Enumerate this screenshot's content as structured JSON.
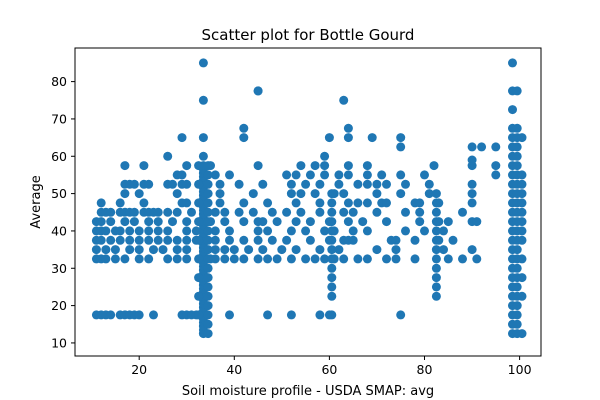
{
  "chart_data": {
    "type": "scatter",
    "title": "Scatter plot for Bottle Gourd",
    "xlabel": "Soil moisture profile - USDA SMAP: avg",
    "ylabel": "Average",
    "xlim": [
      6.5,
      104.5
    ],
    "ylim": [
      6.5,
      89
    ],
    "xticks": [
      20,
      40,
      60,
      80,
      100
    ],
    "yticks": [
      10,
      20,
      30,
      40,
      50,
      60,
      70,
      80
    ],
    "grid": false,
    "legend": "none",
    "marker_color": "#1f77b4",
    "points": [
      [
        11,
        17.5
      ],
      [
        12,
        17.5
      ],
      [
        13,
        17.5
      ],
      [
        14,
        17.5
      ],
      [
        16,
        17.5
      ],
      [
        17,
        17.5
      ],
      [
        18,
        17.5
      ],
      [
        19,
        17.5
      ],
      [
        20,
        17.5
      ],
      [
        23,
        17.5
      ],
      [
        29,
        17.5
      ],
      [
        30,
        17.5
      ],
      [
        31,
        17.5
      ],
      [
        32,
        17.5
      ],
      [
        39,
        17.5
      ],
      [
        47,
        17.5
      ],
      [
        52,
        17.5
      ],
      [
        58,
        17.5
      ],
      [
        60,
        17.5
      ],
      [
        75,
        17.5
      ],
      [
        11,
        32.5
      ],
      [
        12,
        32.5
      ],
      [
        13,
        32.5
      ],
      [
        15,
        32.5
      ],
      [
        17,
        32.5
      ],
      [
        20,
        32.5
      ],
      [
        22,
        32.5
      ],
      [
        26,
        32.5
      ],
      [
        28,
        32.5
      ],
      [
        30,
        32.5
      ],
      [
        35,
        32.5
      ],
      [
        36,
        32.5
      ],
      [
        38,
        32.5
      ],
      [
        40,
        32.5
      ],
      [
        42,
        32.5
      ],
      [
        45,
        32.5
      ],
      [
        47,
        32.5
      ],
      [
        49,
        32.5
      ],
      [
        52,
        32.5
      ],
      [
        55,
        32.5
      ],
      [
        57,
        32.5
      ],
      [
        59,
        32.5
      ],
      [
        61,
        32.5
      ],
      [
        63,
        32.5
      ],
      [
        66,
        32.5
      ],
      [
        68,
        32.5
      ],
      [
        72,
        32.5
      ],
      [
        74,
        32.5
      ],
      [
        78,
        32.5
      ],
      [
        85,
        32.5
      ],
      [
        88,
        32.5
      ],
      [
        91,
        32.5
      ],
      [
        11,
        35
      ],
      [
        13,
        35
      ],
      [
        15,
        35
      ],
      [
        18,
        35
      ],
      [
        20,
        35
      ],
      [
        23,
        35
      ],
      [
        25,
        35
      ],
      [
        28,
        35
      ],
      [
        30,
        35
      ],
      [
        36,
        35
      ],
      [
        38,
        35
      ],
      [
        40,
        35
      ],
      [
        43,
        35
      ],
      [
        46,
        35
      ],
      [
        50,
        35
      ],
      [
        53,
        35
      ],
      [
        58,
        35
      ],
      [
        62,
        35
      ],
      [
        70,
        35
      ],
      [
        74,
        35
      ],
      [
        84,
        35
      ],
      [
        90,
        35
      ],
      [
        11,
        37.5
      ],
      [
        12,
        37.5
      ],
      [
        14,
        37.5
      ],
      [
        16,
        37.5
      ],
      [
        18,
        37.5
      ],
      [
        20,
        37.5
      ],
      [
        22,
        37.5
      ],
      [
        24,
        37.5
      ],
      [
        26,
        37.5
      ],
      [
        28,
        37.5
      ],
      [
        30,
        37.5
      ],
      [
        32,
        37.5
      ],
      [
        36,
        37.5
      ],
      [
        39,
        37.5
      ],
      [
        42,
        37.5
      ],
      [
        45,
        37.5
      ],
      [
        48,
        37.5
      ],
      [
        51,
        37.5
      ],
      [
        56,
        37.5
      ],
      [
        60,
        37.5
      ],
      [
        63,
        37.5
      ],
      [
        64,
        37.5
      ],
      [
        65,
        37.5
      ],
      [
        73,
        37.5
      ],
      [
        74,
        37.5
      ],
      [
        78,
        37.5
      ],
      [
        83,
        37.5
      ],
      [
        86,
        37.5
      ],
      [
        11,
        40
      ],
      [
        12,
        40
      ],
      [
        13,
        40
      ],
      [
        15,
        40
      ],
      [
        16,
        40
      ],
      [
        18,
        40
      ],
      [
        20,
        40
      ],
      [
        22,
        40
      ],
      [
        24,
        40
      ],
      [
        26,
        40
      ],
      [
        30,
        40
      ],
      [
        32,
        40
      ],
      [
        36,
        40
      ],
      [
        39,
        40
      ],
      [
        45,
        40
      ],
      [
        47,
        40
      ],
      [
        52,
        40
      ],
      [
        55,
        40
      ],
      [
        59,
        40
      ],
      [
        61,
        40
      ],
      [
        65,
        40
      ],
      [
        68,
        40
      ],
      [
        76,
        40
      ],
      [
        80,
        40
      ],
      [
        84,
        40
      ],
      [
        11,
        42.5
      ],
      [
        12,
        42.5
      ],
      [
        14,
        42.5
      ],
      [
        17,
        42.5
      ],
      [
        19,
        42.5
      ],
      [
        22,
        42.5
      ],
      [
        24,
        42.5
      ],
      [
        27,
        42.5
      ],
      [
        30,
        42.5
      ],
      [
        35,
        42.5
      ],
      [
        38,
        42.5
      ],
      [
        42,
        42.5
      ],
      [
        45,
        42.5
      ],
      [
        46,
        42.5
      ],
      [
        49,
        42.5
      ],
      [
        53,
        42.5
      ],
      [
        56,
        42.5
      ],
      [
        60,
        42.5
      ],
      [
        64,
        42.5
      ],
      [
        67,
        42.5
      ],
      [
        72,
        42.5
      ],
      [
        79,
        42.5
      ],
      [
        83,
        42.5
      ],
      [
        85,
        42.5
      ],
      [
        90,
        42.5
      ],
      [
        91,
        42.5
      ],
      [
        12,
        45
      ],
      [
        13,
        45
      ],
      [
        14,
        45
      ],
      [
        16,
        45
      ],
      [
        17,
        45
      ],
      [
        18,
        45
      ],
      [
        19,
        45
      ],
      [
        21,
        45
      ],
      [
        22,
        45
      ],
      [
        23,
        45
      ],
      [
        24,
        45
      ],
      [
        26,
        45
      ],
      [
        28,
        45
      ],
      [
        31,
        45
      ],
      [
        36,
        45
      ],
      [
        38,
        45
      ],
      [
        41,
        45
      ],
      [
        44,
        45
      ],
      [
        48,
        45
      ],
      [
        51,
        45
      ],
      [
        54,
        45
      ],
      [
        58,
        45
      ],
      [
        63,
        45
      ],
      [
        65,
        45
      ],
      [
        70,
        45
      ],
      [
        76,
        45
      ],
      [
        79,
        45
      ],
      [
        88,
        45
      ],
      [
        12,
        47.5
      ],
      [
        16,
        47.5
      ],
      [
        21,
        47.5
      ],
      [
        29,
        47.5
      ],
      [
        30,
        47.5
      ],
      [
        37,
        47.5
      ],
      [
        42,
        47.5
      ],
      [
        47,
        47.5
      ],
      [
        53,
        47.5
      ],
      [
        58,
        47.5
      ],
      [
        64,
        47.5
      ],
      [
        66,
        47.5
      ],
      [
        68,
        47.5
      ],
      [
        71,
        47.5
      ],
      [
        72,
        47.5
      ],
      [
        78,
        47.5
      ],
      [
        79,
        47.5
      ],
      [
        83,
        47.5
      ],
      [
        90,
        47.5
      ],
      [
        17,
        50
      ],
      [
        20,
        50
      ],
      [
        28,
        50
      ],
      [
        37,
        50
      ],
      [
        44,
        50
      ],
      [
        52,
        50
      ],
      [
        54,
        50
      ],
      [
        57,
        50
      ],
      [
        61,
        50
      ],
      [
        63,
        50
      ],
      [
        70,
        50
      ],
      [
        75,
        50
      ],
      [
        81,
        50
      ],
      [
        90,
        50
      ],
      [
        17,
        52.5
      ],
      [
        18,
        52.5
      ],
      [
        19,
        52.5
      ],
      [
        21,
        52.5
      ],
      [
        22,
        52.5
      ],
      [
        26,
        52.5
      ],
      [
        27,
        52.5
      ],
      [
        29,
        52.5
      ],
      [
        30,
        52.5
      ],
      [
        37,
        52.5
      ],
      [
        41,
        52.5
      ],
      [
        46,
        52.5
      ],
      [
        52,
        52.5
      ],
      [
        55,
        52.5
      ],
      [
        58,
        52.5
      ],
      [
        62,
        52.5
      ],
      [
        66,
        52.5
      ],
      [
        68,
        52.5
      ],
      [
        70,
        52.5
      ],
      [
        72,
        52.5
      ],
      [
        76,
        52.5
      ],
      [
        81,
        52.5
      ],
      [
        90,
        52.5
      ],
      [
        28,
        55
      ],
      [
        29,
        55
      ],
      [
        36,
        55
      ],
      [
        39,
        55
      ],
      [
        51,
        55
      ],
      [
        53,
        55
      ],
      [
        56,
        55
      ],
      [
        59,
        55
      ],
      [
        62,
        55
      ],
      [
        64,
        55
      ],
      [
        68,
        55
      ],
      [
        71,
        55
      ],
      [
        75,
        55
      ],
      [
        80,
        55
      ],
      [
        95,
        55
      ],
      [
        17,
        57.5
      ],
      [
        21,
        57.5
      ],
      [
        30,
        57.5
      ],
      [
        35,
        57.5
      ],
      [
        45,
        57.5
      ],
      [
        54,
        57.5
      ],
      [
        57,
        57.5
      ],
      [
        59,
        57.5
      ],
      [
        64,
        57.5
      ],
      [
        68,
        57.5
      ],
      [
        82,
        57.5
      ],
      [
        90,
        57.5
      ],
      [
        95,
        57.5
      ],
      [
        26,
        60
      ],
      [
        59,
        60
      ],
      [
        90,
        59
      ],
      [
        92,
        62.5
      ],
      [
        95,
        62.5
      ],
      [
        75,
        62.5
      ],
      [
        75,
        65
      ],
      [
        90,
        62.5
      ],
      [
        42,
        65
      ],
      [
        42,
        67.5
      ],
      [
        29,
        65
      ],
      [
        60,
        65
      ],
      [
        64,
        65
      ],
      [
        64,
        67.5
      ],
      [
        69,
        65
      ],
      [
        63,
        75
      ],
      [
        45,
        77.5
      ],
      [
        45,
        77.5
      ]
    ],
    "columns": {
      "33.5": [
        12.5,
        13.5,
        14.5,
        15.5,
        16.5,
        17.5,
        18.5,
        19.5,
        20.5,
        21.5,
        22.5,
        23.5,
        24.5,
        25.5,
        26.5,
        27.5,
        28.5,
        29.5,
        30.5,
        31.5,
        32.5,
        33.5,
        34.5,
        35.5,
        36.5,
        37.5,
        38.5,
        39.5,
        40.5,
        41.5,
        42.5,
        43.5,
        44.5,
        45.5,
        46.5,
        47.5,
        48.5,
        49.5,
        50.5,
        51.5,
        52.5,
        53.5,
        54.5,
        55.5,
        56.5,
        57.5,
        60,
        65,
        75,
        85
      ],
      "34.5": [
        12.5,
        15,
        17.5,
        20,
        22.5,
        25,
        27.5,
        30,
        32.5,
        35,
        37.5,
        40,
        42.5,
        45,
        47.5,
        50,
        52.5,
        55,
        57.5
      ],
      "32.5": [
        17.5,
        22.5,
        27.5,
        32.5,
        37.5,
        42.5,
        47.5,
        52.5,
        57.5
      ],
      "60.5": [
        17.5,
        22.5,
        25,
        27.5,
        30,
        32.5,
        35,
        37.5,
        40,
        42.5,
        45,
        47.5,
        50
      ],
      "82.5": [
        22.5,
        25,
        27.5,
        30,
        32.5,
        35,
        37.5,
        40,
        42.5,
        45,
        47.5,
        50
      ],
      "98.5": [
        12.5,
        15,
        17.5,
        20,
        22.5,
        25,
        27.5,
        30,
        32.5,
        35,
        37.5,
        40,
        42.5,
        45,
        47.5,
        50,
        52.5,
        55,
        57.5,
        60,
        62.5,
        65,
        67.5,
        72.5,
        77.5,
        85
      ],
      "99.5": [
        12.5,
        15,
        17.5,
        20,
        22.5,
        25,
        27.5,
        30,
        32.5,
        35,
        37.5,
        40,
        42.5,
        45,
        47.5,
        50,
        52.5,
        55,
        57.5,
        60,
        62.5,
        65,
        67.5,
        77.5
      ],
      "100.5": [
        12.5,
        22.5,
        27.5,
        32.5,
        37.5,
        40,
        42.5,
        45,
        47.5,
        50,
        52.5,
        55,
        65
      ]
    }
  }
}
